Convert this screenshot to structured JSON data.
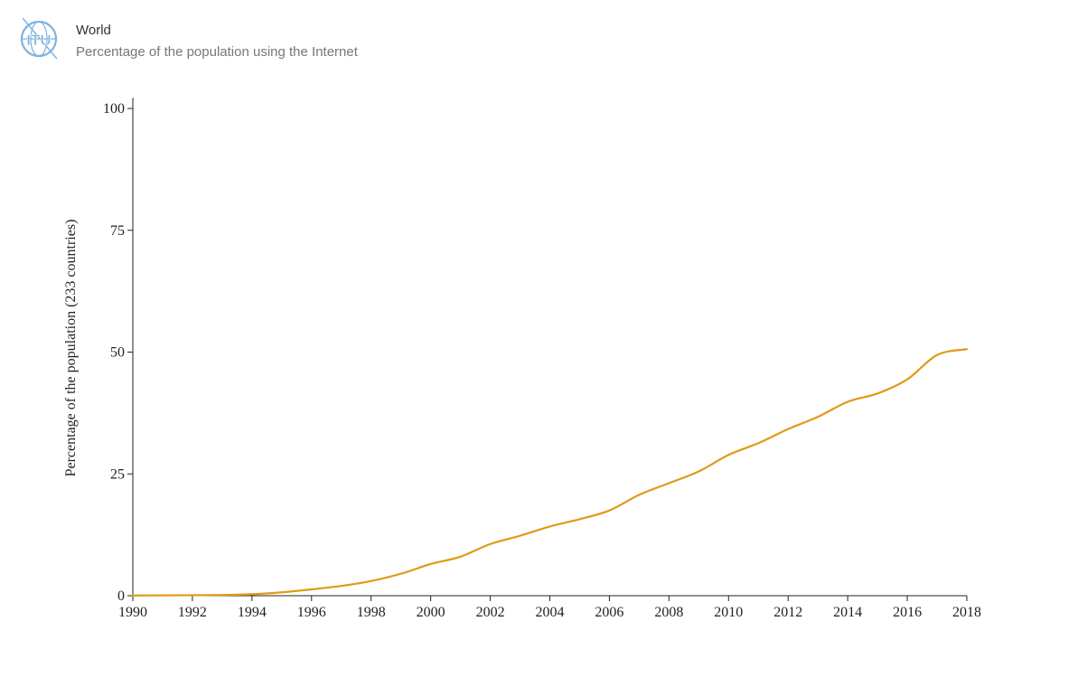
{
  "header": {
    "logo_text": "ITU",
    "logo_color": "#7fb2e0",
    "title": "World",
    "subtitle": "Percentage of the population using the Internet"
  },
  "chart_data": {
    "type": "line",
    "title": "World",
    "subtitle": "Percentage of the population using the Internet",
    "xlabel": "",
    "ylabel": "Percentage of the population (233 countries)",
    "xlim": [
      1990,
      2018
    ],
    "ylim": [
      0,
      100
    ],
    "x_ticks": [
      "1990",
      "1992",
      "1994",
      "1996",
      "1998",
      "2000",
      "2002",
      "2004",
      "2006",
      "2008",
      "2010",
      "2012",
      "2014",
      "2016",
      "2018"
    ],
    "y_ticks": [
      "0",
      "25",
      "50",
      "75",
      "100"
    ],
    "grid": false,
    "legend": "none",
    "line_color": "#e09a16",
    "series": [
      {
        "x": [
          1990,
          1991,
          1992,
          1993,
          1994,
          1995,
          1996,
          1997,
          1998,
          1999,
          2000,
          2001,
          2002,
          2003,
          2004,
          2005,
          2006,
          2007,
          2008,
          2009,
          2010,
          2011,
          2012,
          2013,
          2014,
          2015,
          2016,
          2017,
          2018
        ],
        "values": [
          0.05,
          0.07,
          0.1,
          0.15,
          0.3,
          0.7,
          1.3,
          2.0,
          3.0,
          4.5,
          6.5,
          8.0,
          10.6,
          12.3,
          14.2,
          15.7,
          17.5,
          20.7,
          23.1,
          25.5,
          28.9,
          31.3,
          34.2,
          36.7,
          39.8,
          41.5,
          44.4,
          49.4,
          50.6
        ]
      }
    ]
  }
}
